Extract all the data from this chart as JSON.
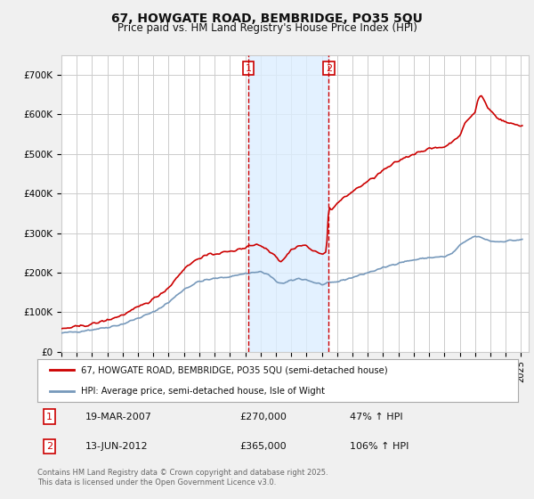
{
  "title": "67, HOWGATE ROAD, BEMBRIDGE, PO35 5QU",
  "subtitle": "Price paid vs. HM Land Registry's House Price Index (HPI)",
  "red_label": "67, HOWGATE ROAD, BEMBRIDGE, PO35 5QU (semi-detached house)",
  "blue_label": "HPI: Average price, semi-detached house, Isle of Wight",
  "footnote": "Contains HM Land Registry data © Crown copyright and database right 2025.\nThis data is licensed under the Open Government Licence v3.0.",
  "ylim": [
    0,
    750000
  ],
  "yticks": [
    0,
    100000,
    200000,
    300000,
    400000,
    500000,
    600000,
    700000
  ],
  "ytick_labels": [
    "£0",
    "£100K",
    "£200K",
    "£300K",
    "£400K",
    "£500K",
    "£600K",
    "£700K"
  ],
  "marker1_date": "19-MAR-2007",
  "marker1_price": 270000,
  "marker1_pct": "47% ↑ HPI",
  "marker1_x": 2007.21,
  "marker2_date": "13-JUN-2012",
  "marker2_price": 365000,
  "marker2_pct": "106% ↑ HPI",
  "marker2_x": 2012.45,
  "shade_start": 2007.21,
  "shade_end": 2012.45,
  "background_color": "#f0f0f0",
  "plot_bg_color": "#ffffff",
  "red_color": "#cc0000",
  "blue_color": "#7799bb",
  "grid_color": "#cccccc",
  "shade_color": "#ddeeff",
  "marker_box_color": "#cc0000",
  "xlim_start": 1995,
  "xlim_end": 2025.5
}
